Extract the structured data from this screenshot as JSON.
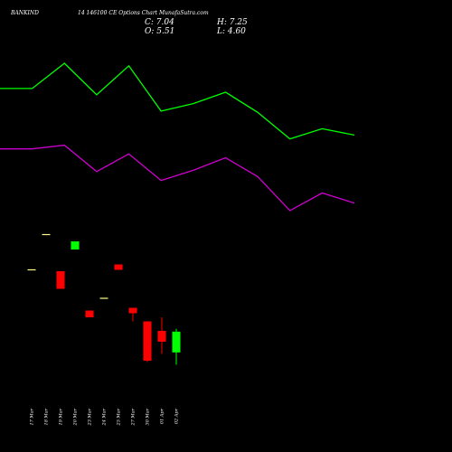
{
  "header": {
    "symbol": "BANKIND",
    "subtitle": "14 146100 CE Options Chart MunafaSutra.com",
    "c_text": "C: 7.04",
    "o_text": "O: 5.51",
    "h_text": "H: 7.25",
    "l_text": "L: 4.60"
  },
  "colors": {
    "background": "#000000",
    "up": "#00ff00",
    "down": "#ff0000",
    "doji": "#ffff88",
    "line_upper": "#00ff00",
    "line_lower": "#cc00cc",
    "text": "#ffffff"
  },
  "chart_data": {
    "type": "candlestick",
    "categories": [
      "17 Mar",
      "18 Mar",
      "19 Mar",
      "20 Mar",
      "23 Mar",
      "24 Mar",
      "25 Mar",
      "27 Mar",
      "30 Mar",
      "01 Apr",
      "02 Apr"
    ],
    "candles": [
      {
        "open": 11.6,
        "high": 11.6,
        "low": 11.6,
        "close": 11.6
      },
      {
        "open": 14.2,
        "high": 14.2,
        "low": 14.2,
        "close": 14.2
      },
      {
        "open": 11.5,
        "high": 11.5,
        "low": 10.2,
        "close": 10.2
      },
      {
        "open": 13.1,
        "high": 13.7,
        "low": 13.1,
        "close": 13.7
      },
      {
        "open": 8.6,
        "high": 8.6,
        "low": 8.1,
        "close": 8.1
      },
      {
        "open": 9.5,
        "high": 9.5,
        "low": 9.5,
        "close": 9.5
      },
      {
        "open": 12.0,
        "high": 12.0,
        "low": 11.6,
        "close": 11.6
      },
      {
        "open": 8.8,
        "high": 8.8,
        "low": 7.8,
        "close": 8.4
      },
      {
        "open": 7.8,
        "high": 7.8,
        "low": 4.8,
        "close": 4.9
      },
      {
        "open": 7.1,
        "high": 8.1,
        "low": 5.4,
        "close": 6.3
      },
      {
        "open": 5.51,
        "high": 7.25,
        "low": 4.6,
        "close": 7.04
      }
    ],
    "line_points": [
      0,
      1,
      2,
      3,
      4,
      5,
      6,
      7,
      8,
      9,
      10,
      11
    ],
    "upper_line": [
      32.0,
      32.0,
      34.0,
      31.5,
      33.8,
      30.2,
      30.8,
      31.7,
      30.1,
      28.0,
      28.8,
      28.3
    ],
    "lower_line": [
      27.2,
      27.2,
      27.5,
      25.4,
      26.8,
      24.7,
      25.5,
      26.5,
      25.0,
      22.3,
      23.7,
      22.9
    ]
  }
}
